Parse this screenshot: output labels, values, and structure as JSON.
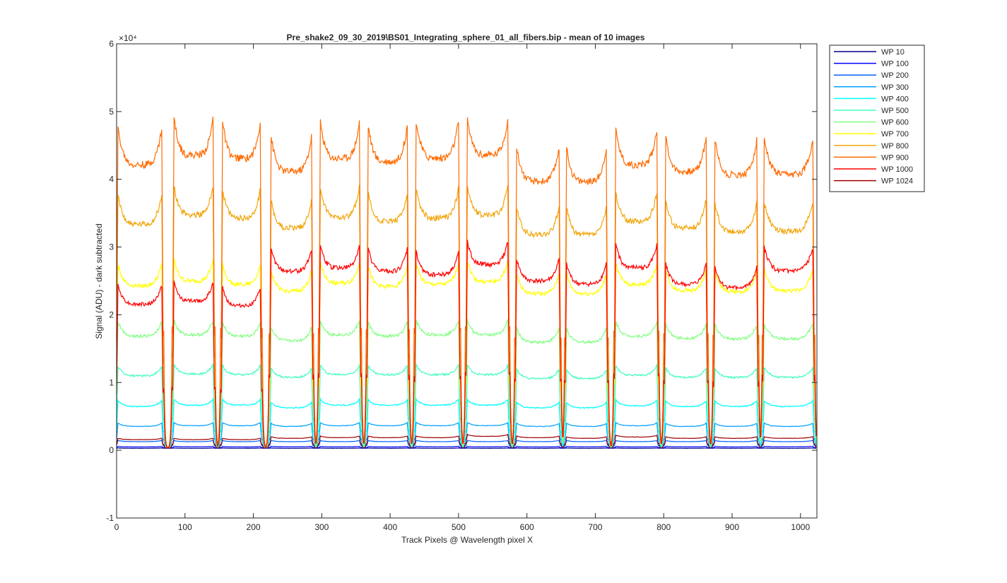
{
  "chart_data": {
    "type": "line",
    "title": "Pre_shake2_09_30_2019\\BS01_Integrating_sphere_01_all_fibers.bip - mean of 10 images",
    "xlabel": "Track Pixels @ Wavelength pixel X",
    "ylabel": "Signal (ADU) - dark subtracted",
    "y_exponent_label": "×10⁴",
    "xlim": [
      0,
      1024
    ],
    "ylim": [
      -10000,
      60000
    ],
    "x_ticks": [
      0,
      100,
      200,
      300,
      400,
      500,
      600,
      700,
      800,
      900,
      1000
    ],
    "x_tick_labels": [
      "0",
      "100",
      "200",
      "300",
      "400",
      "500",
      "600",
      "700",
      "800",
      "900",
      "1000"
    ],
    "y_ticks": [
      -10000,
      0,
      10000,
      20000,
      30000,
      40000,
      50000,
      60000
    ],
    "y_tick_labels": [
      "-1",
      "0",
      "1",
      "2",
      "3",
      "4",
      "5",
      "6"
    ],
    "grid": false,
    "legend_position": "outside-right-top",
    "fiber_bands": {
      "plateau_starts": [
        0,
        82,
        153,
        224,
        296,
        366,
        436,
        511,
        583,
        656,
        728,
        801,
        873,
        945
      ],
      "plateau_ends": [
        68,
        143,
        212,
        287,
        357,
        427,
        502,
        574,
        649,
        718,
        792,
        864,
        938,
        1020
      ],
      "dip_floor": 300
    },
    "series": [
      {
        "name": "WP 10",
        "color": "#00008f",
        "levels": [
          300,
          300,
          300,
          300,
          300,
          300,
          300,
          300,
          300,
          300,
          300,
          300,
          300,
          300
        ]
      },
      {
        "name": "WP 100",
        "color": "#0000ff",
        "levels": [
          500,
          520,
          500,
          520,
          510,
          500,
          520,
          510,
          500,
          510,
          500,
          510,
          500,
          520
        ]
      },
      {
        "name": "WP 200",
        "color": "#0060ff",
        "levels": [
          1300,
          1300,
          1300,
          1300,
          1300,
          1300,
          1300,
          1300,
          1300,
          1300,
          1300,
          1300,
          1300,
          1300
        ]
      },
      {
        "name": "WP 300",
        "color": "#00a0ff",
        "levels": [
          3600,
          3700,
          3700,
          3600,
          3700,
          3700,
          3700,
          3700,
          3600,
          3600,
          3700,
          3600,
          3600,
          3600
        ]
      },
      {
        "name": "WP 400",
        "color": "#00ffff",
        "levels": [
          6600,
          6800,
          6800,
          6400,
          6800,
          6800,
          6800,
          6800,
          6400,
          6400,
          6700,
          6600,
          6600,
          6600
        ]
      },
      {
        "name": "WP 500",
        "color": "#40ffbf",
        "levels": [
          11200,
          11500,
          11400,
          11000,
          11400,
          11400,
          11400,
          11400,
          10800,
          10800,
          11300,
          11000,
          11000,
          11000
        ]
      },
      {
        "name": "WP 600",
        "color": "#80ff80",
        "levels": [
          17200,
          17400,
          17200,
          16500,
          17400,
          17200,
          17400,
          17400,
          16300,
          16300,
          17200,
          16900,
          16800,
          16800
        ]
      },
      {
        "name": "WP 700",
        "color": "#ffff00",
        "levels": [
          24800,
          25500,
          25000,
          24000,
          25200,
          24700,
          25000,
          25400,
          23600,
          23600,
          25000,
          24100,
          23900,
          24000
        ]
      },
      {
        "name": "WP 800",
        "color": "#f2a60d",
        "levels": [
          34000,
          35500,
          35000,
          33500,
          35200,
          34500,
          35000,
          35500,
          32500,
          32500,
          34500,
          33500,
          33000,
          33000
        ]
      },
      {
        "name": "WP 900",
        "color": "#ff6a00",
        "levels": [
          43000,
          44500,
          44000,
          42000,
          44000,
          43500,
          44000,
          44500,
          40500,
          40500,
          43000,
          42000,
          41500,
          41500
        ]
      },
      {
        "name": "WP 1000",
        "color": "#ff0000",
        "levels": [
          22000,
          22500,
          21800,
          27000,
          27500,
          27000,
          26500,
          28000,
          25500,
          25000,
          27500,
          25000,
          24500,
          27000
        ]
      },
      {
        "name": "WP 1024",
        "color": "#a00000",
        "levels": [
          1600,
          1600,
          1600,
          1800,
          1900,
          1900,
          1900,
          2100,
          1900,
          1800,
          2000,
          1800,
          1800,
          1800
        ]
      }
    ]
  }
}
